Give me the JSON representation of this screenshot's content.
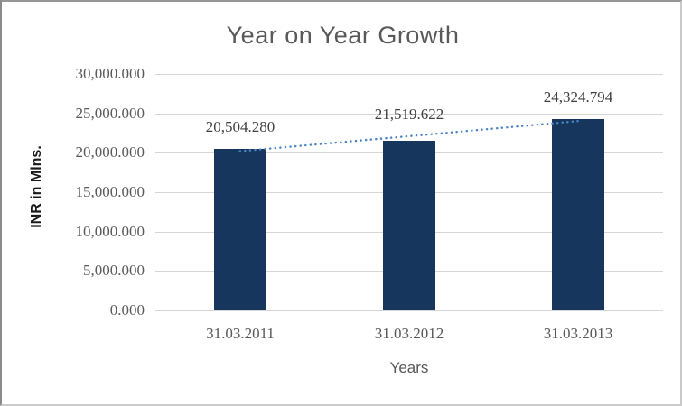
{
  "chart_data": {
    "type": "bar",
    "title": "Year on Year Growth",
    "xlabel": "Years",
    "ylabel": "INR in Mlns.",
    "categories": [
      "31.03.2011",
      "31.03.2012",
      "31.03.2013"
    ],
    "values": [
      20504.28,
      21519.622,
      24324.794
    ],
    "value_labels": [
      "20,504.280",
      "21,519.622",
      "24,324.794"
    ],
    "ylim": [
      0,
      30000
    ],
    "ytick_values": [
      0,
      5000,
      10000,
      15000,
      20000,
      25000,
      30000
    ],
    "ytick_labels": [
      "0.000",
      "5,000.000",
      "10,000.000",
      "15,000.000",
      "20,000.000",
      "25,000.000",
      "30,000.000"
    ],
    "grid": true,
    "legend": false,
    "bar_color": "#17365d",
    "gridline_color": "#d6d6d6",
    "title_color": "#595959",
    "trendline": {
      "type": "linear",
      "style": "dotted",
      "color": "#4a82c4",
      "start_value": 20206,
      "end_value": 24026
    }
  }
}
